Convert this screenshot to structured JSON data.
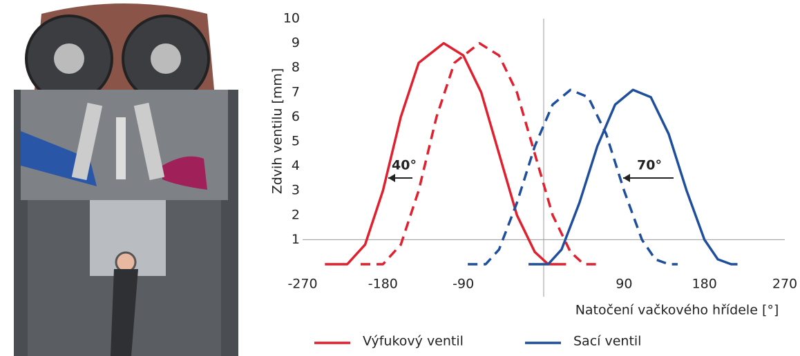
{
  "chart_data": {
    "type": "line",
    "y_label": "Zdvih ventilu [mm]",
    "x_label": "Natočení vačkového hřídele [°]",
    "xlim": [
      -270,
      270
    ],
    "xticks": [
      -270,
      -180,
      -90,
      90,
      180,
      270
    ],
    "ylim": [
      0,
      10
    ],
    "yticks": [
      1,
      2,
      3,
      4,
      5,
      6,
      7,
      8,
      9,
      10
    ],
    "vline": 0,
    "hline": 1,
    "series": [
      {
        "name": "Výfukový ventil",
        "color": "#e0202e",
        "dash": false,
        "x": [
          -245,
          -220,
          -200,
          -180,
          -160,
          -140,
          -112,
          -90,
          -70,
          -50,
          -30,
          -10,
          5,
          25
        ],
        "values": [
          0,
          0,
          0.8,
          3,
          6,
          8.2,
          9,
          8.5,
          7,
          4.5,
          2,
          0.5,
          0,
          0
        ]
      },
      {
        "name": null,
        "color": "#e0202e",
        "dash": true,
        "x": [
          -205,
          -180,
          -160,
          -140,
          -120,
          -100,
          -72,
          -50,
          -30,
          -10,
          10,
          30,
          45,
          65
        ],
        "values": [
          0,
          0,
          0.8,
          3,
          6,
          8.2,
          9,
          8.5,
          7,
          4.5,
          2,
          0.5,
          0,
          0
        ]
      },
      {
        "name": null,
        "color": "#1f4f9c",
        "dash": true,
        "x": [
          -85,
          -65,
          -50,
          -30,
          -10,
          10,
          30,
          50,
          70,
          90,
          110,
          125,
          140,
          150
        ],
        "values": [
          0,
          0,
          0.6,
          2.5,
          4.8,
          6.5,
          7.1,
          6.8,
          5.3,
          3,
          1,
          0.2,
          0,
          0
        ]
      },
      {
        "name": "Sací ventil",
        "color": "#1f4f9c",
        "dash": false,
        "x": [
          -17,
          5,
          20,
          40,
          60,
          80,
          100,
          120,
          140,
          160,
          180,
          195,
          210,
          217
        ],
        "values": [
          0,
          0,
          0.6,
          2.5,
          4.8,
          6.5,
          7.1,
          6.8,
          5.3,
          3,
          1,
          0.2,
          0,
          0
        ]
      }
    ],
    "annotations": [
      "40°",
      "70°"
    ]
  }
}
